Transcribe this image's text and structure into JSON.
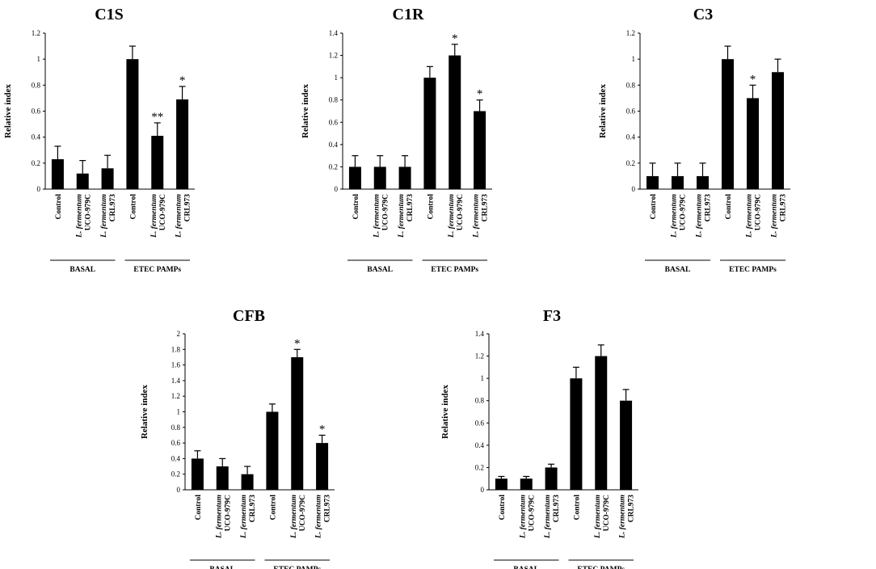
{
  "chart_data": [
    {
      "type": "bar",
      "title": "C1S",
      "ylabel": "Relative index",
      "ylim": [
        0,
        1.2
      ],
      "ytick_labels": [
        "0",
        "0.2",
        "0.4",
        "0.6",
        "0.8",
        "1",
        "1.2"
      ],
      "categories": [
        {
          "lines": [
            "Control"
          ],
          "italic": false
        },
        {
          "lines": [
            "L. fermentum",
            "UCO-979C"
          ],
          "italic": true
        },
        {
          "lines": [
            "L. fermentum",
            "CRL973"
          ],
          "italic": true
        },
        {
          "lines": [
            "Control"
          ],
          "italic": false
        },
        {
          "lines": [
            "L. fermentum",
            "UCO-979C"
          ],
          "italic": true
        },
        {
          "lines": [
            "L. fermentum",
            "CRL973"
          ],
          "italic": true
        }
      ],
      "values": [
        0.23,
        0.12,
        0.16,
        1.0,
        0.41,
        0.69
      ],
      "errors": [
        0.1,
        0.1,
        0.1,
        0.1,
        0.1,
        0.1
      ],
      "significance": [
        "",
        "",
        "",
        "",
        "**",
        "*"
      ],
      "groups": [
        {
          "label": "BASAL",
          "span": [
            0,
            2
          ]
        },
        {
          "label": "ETEC PAMPs",
          "span": [
            3,
            5
          ]
        }
      ]
    },
    {
      "type": "bar",
      "title": "C1R",
      "ylabel": "Relative index",
      "ylim": [
        0,
        1.4
      ],
      "ytick_labels": [
        "0",
        "0.2",
        "0.4",
        "0.6",
        "0.8",
        "1",
        "1.2",
        "1.4"
      ],
      "categories": [
        {
          "lines": [
            "Control"
          ],
          "italic": false
        },
        {
          "lines": [
            "L. fermentum",
            "UCO-979C"
          ],
          "italic": true
        },
        {
          "lines": [
            "L. fermentum",
            "CRL973"
          ],
          "italic": true
        },
        {
          "lines": [
            "Control"
          ],
          "italic": false
        },
        {
          "lines": [
            "L. fermentum",
            "UCO-979C"
          ],
          "italic": true
        },
        {
          "lines": [
            "L. fermentum",
            "CRL973"
          ],
          "italic": true
        }
      ],
      "values": [
        0.2,
        0.2,
        0.2,
        1.0,
        1.2,
        0.7
      ],
      "errors": [
        0.1,
        0.1,
        0.1,
        0.1,
        0.1,
        0.1
      ],
      "significance": [
        "",
        "",
        "",
        "",
        "*",
        "*"
      ],
      "groups": [
        {
          "label": "BASAL",
          "span": [
            0,
            2
          ]
        },
        {
          "label": "ETEC PAMPs",
          "span": [
            3,
            5
          ]
        }
      ]
    },
    {
      "type": "bar",
      "title": "C3",
      "ylabel": "Relative index",
      "ylim": [
        0,
        1.2
      ],
      "ytick_labels": [
        "0",
        "0.2",
        "0.4",
        "0.6",
        "0.8",
        "1",
        "1.2"
      ],
      "categories": [
        {
          "lines": [
            "Control"
          ],
          "italic": false
        },
        {
          "lines": [
            "L. fermentum",
            "UCO-979C"
          ],
          "italic": true
        },
        {
          "lines": [
            "L. fermentum",
            "CRL973"
          ],
          "italic": true
        },
        {
          "lines": [
            "Control"
          ],
          "italic": false
        },
        {
          "lines": [
            "L. fermentum",
            "UCO-979C"
          ],
          "italic": true
        },
        {
          "lines": [
            "L. fermentum",
            "CRL973"
          ],
          "italic": true
        }
      ],
      "values": [
        0.1,
        0.1,
        0.1,
        1.0,
        0.7,
        0.9
      ],
      "errors": [
        0.1,
        0.1,
        0.1,
        0.1,
        0.1,
        0.1
      ],
      "significance": [
        "",
        "",
        "",
        "",
        "*",
        ""
      ],
      "groups": [
        {
          "label": "BASAL",
          "span": [
            0,
            2
          ]
        },
        {
          "label": "ETEC PAMPs",
          "span": [
            3,
            5
          ]
        }
      ]
    },
    {
      "type": "bar",
      "title": "CFB",
      "ylabel": "Relative index",
      "ylim": [
        0,
        2
      ],
      "ytick_labels": [
        "0",
        "0.2",
        "0.4",
        "0.6",
        "0.8",
        "1",
        "1.2",
        "1.4",
        "1.6",
        "1.8",
        "2"
      ],
      "categories": [
        {
          "lines": [
            "Control"
          ],
          "italic": false
        },
        {
          "lines": [
            "L. fermentum",
            "UCO-979C"
          ],
          "italic": true
        },
        {
          "lines": [
            "L. fermentum",
            "CRL973"
          ],
          "italic": true
        },
        {
          "lines": [
            "Control"
          ],
          "italic": false
        },
        {
          "lines": [
            "L. fermentum",
            "UCO-979C"
          ],
          "italic": true
        },
        {
          "lines": [
            "L. fermentum",
            "CRL973"
          ],
          "italic": true
        }
      ],
      "values": [
        0.4,
        0.3,
        0.2,
        1.0,
        1.7,
        0.6
      ],
      "errors": [
        0.1,
        0.1,
        0.1,
        0.1,
        0.1,
        0.1
      ],
      "significance": [
        "",
        "",
        "",
        "",
        "*",
        "*"
      ],
      "groups": [
        {
          "label": "BASAL",
          "span": [
            0,
            2
          ]
        },
        {
          "label": "ETEC PAMPs",
          "span": [
            3,
            5
          ]
        }
      ]
    },
    {
      "type": "bar",
      "title": "F3",
      "ylabel": "Relative index",
      "ylim": [
        0,
        1.4
      ],
      "ytick_labels": [
        "0",
        "0.2",
        "0.4",
        "0.6",
        "0.8",
        "1",
        "1.2",
        "1.4"
      ],
      "categories": [
        {
          "lines": [
            "Control"
          ],
          "italic": false
        },
        {
          "lines": [
            "L. fermentum",
            "UCO-979C"
          ],
          "italic": true
        },
        {
          "lines": [
            "L. fermentum",
            "CRL973"
          ],
          "italic": true
        },
        {
          "lines": [
            "Control"
          ],
          "italic": false
        },
        {
          "lines": [
            "L. fermentum",
            "UCO-979C"
          ],
          "italic": true
        },
        {
          "lines": [
            "L. fermentum",
            "CRL973"
          ],
          "italic": true
        }
      ],
      "values": [
        0.1,
        0.1,
        0.2,
        1.0,
        1.2,
        0.8
      ],
      "errors": [
        0.02,
        0.02,
        0.03,
        0.1,
        0.1,
        0.1
      ],
      "significance": [
        "",
        "",
        "",
        "",
        "",
        ""
      ],
      "groups": [
        {
          "label": "BASAL",
          "span": [
            0,
            2
          ]
        },
        {
          "label": "ETEC PAMPs",
          "span": [
            3,
            5
          ]
        }
      ]
    }
  ]
}
